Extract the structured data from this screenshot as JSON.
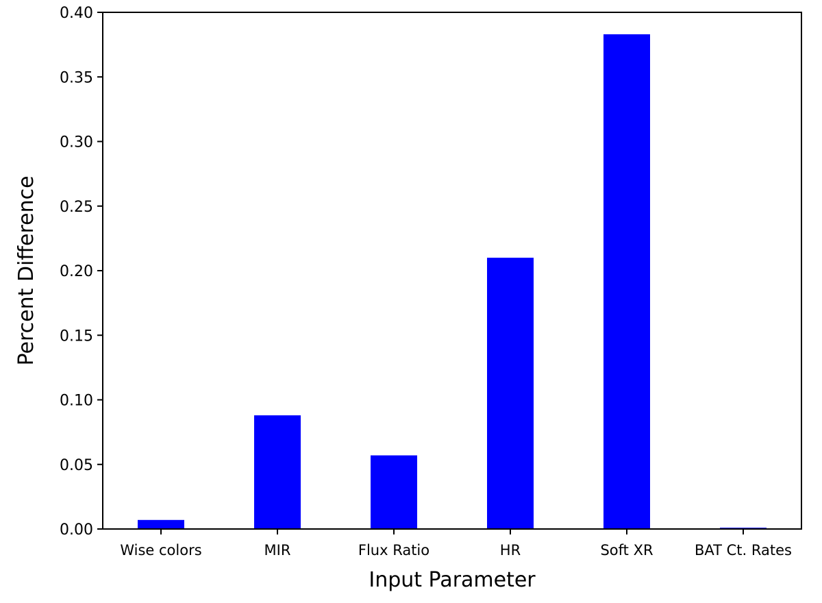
{
  "chart_data": {
    "type": "bar",
    "title": "",
    "xlabel": "Input Parameter",
    "ylabel": "Percent Difference",
    "categories": [
      "Wise colors",
      "MIR",
      "Flux Ratio",
      "HR",
      "Soft XR",
      "BAT Ct. Rates"
    ],
    "values": [
      0.007,
      0.088,
      0.057,
      0.21,
      0.383,
      0.001
    ],
    "ylim": [
      0,
      0.4
    ],
    "yticks": [
      "0.00",
      "0.05",
      "0.10",
      "0.15",
      "0.20",
      "0.25",
      "0.30",
      "0.35",
      "0.40"
    ],
    "grid": false,
    "legend": "none",
    "bar_color": "#0000ff"
  }
}
